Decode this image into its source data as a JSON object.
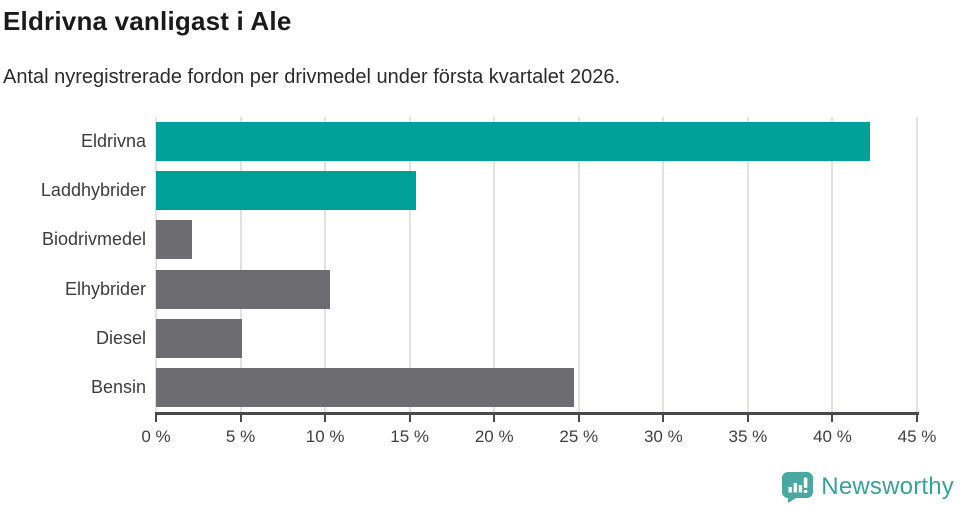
{
  "header": {
    "title": "Eldrivna vanligast i Ale",
    "subtitle": "Antal nyregistrerade fordon per drivmedel under första kvartalet 2026."
  },
  "chart_data": {
    "type": "bar",
    "orientation": "horizontal",
    "title": "Eldrivna vanligast i Ale",
    "subtitle": "Antal nyregistrerade fordon per drivmedel under första kvartalet 2026.",
    "categories": [
      "Eldrivna",
      "Laddhybrider",
      "Biodrivmedel",
      "Elhybrider",
      "Diesel",
      "Bensin"
    ],
    "values": [
      42.2,
      15.4,
      2.1,
      10.3,
      5.1,
      24.7
    ],
    "bar_colors": [
      "#00a099",
      "#00a099",
      "#6c6c71",
      "#6c6c71",
      "#6c6c71",
      "#6c6c71"
    ],
    "xlabel": "",
    "ylabel": "",
    "xlim": [
      0,
      45
    ],
    "x_tick_values": [
      0,
      5,
      10,
      15,
      20,
      25,
      30,
      35,
      40,
      45
    ],
    "x_tick_labels": [
      "0 %",
      "5 %",
      "10 %",
      "15 %",
      "20 %",
      "25 %",
      "30 %",
      "35 %",
      "40 %",
      "45 %"
    ],
    "grid": "vertical-only",
    "legend": "none",
    "colors": {
      "accent": "#00a099",
      "neutral": "#6c6c71",
      "gridline": "#e2e2e2",
      "axis": "#4a4a4e",
      "tick_text": "#3f3f3f",
      "label_text": "#3c3c3c"
    }
  },
  "footer": {
    "brand": "Newsworthy",
    "brand_color": "#3aa09b",
    "logo_icon": "bar-chart-speech-bubble-icon"
  }
}
